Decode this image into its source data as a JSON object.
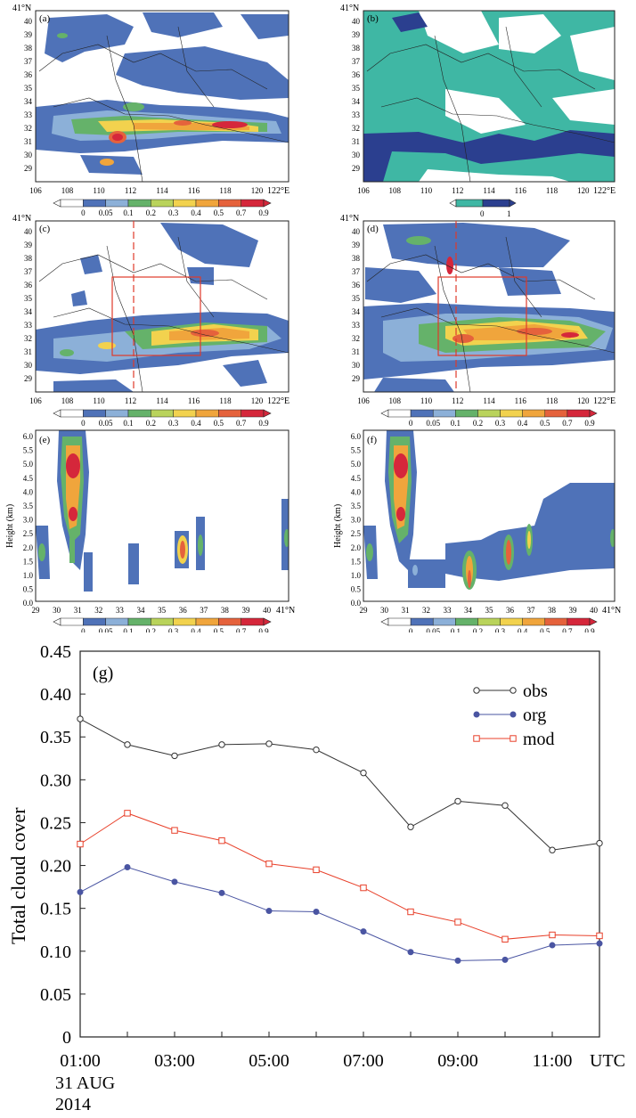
{
  "colors": {
    "c0": "#ffffff",
    "c005": "#4f72b8",
    "c01": "#8cb0d8",
    "c02": "#65b26a",
    "c03": "#b9d35b",
    "c04": "#f2d24e",
    "c05": "#f0a53c",
    "c07": "#e5623c",
    "c09": "#d5273b",
    "teal": "#3fb7a4",
    "navy": "#2b3f8f",
    "obs_line": "#333333",
    "org_line": "#4a55a2",
    "mod_line": "#e8402a"
  },
  "panels": {
    "a": {
      "label": "(a)",
      "lat_top": "41°N",
      "lon_end": "122°E"
    },
    "b": {
      "label": "(b)",
      "lat_top": "41°N",
      "lon_end": "122°E"
    },
    "c": {
      "label": "(c)",
      "lat_top": "41°N",
      "lon_end": "122°E"
    },
    "d": {
      "label": "(d)",
      "lat_top": "41°N",
      "lon_end": "122°E"
    },
    "e": {
      "label": "(e)",
      "lat_end": "41°N",
      "ylabel": "Height (km)"
    },
    "f": {
      "label": "(f)",
      "lat_end": "41°N",
      "ylabel": "Height (km)"
    }
  },
  "map_lat_ticks": [
    "40",
    "39",
    "38",
    "37",
    "36",
    "35",
    "34",
    "33",
    "32",
    "31",
    "30",
    "29"
  ],
  "map_lon_ticks": [
    "106",
    "108",
    "110",
    "112",
    "114",
    "116",
    "118",
    "120"
  ],
  "cross_lat_ticks": [
    "29",
    "30",
    "31",
    "32",
    "33",
    "34",
    "35",
    "36",
    "37",
    "38",
    "39",
    "40"
  ],
  "cross_height_ticks": [
    "6.0",
    "5.5",
    "5.0",
    "4.5",
    "4.0",
    "3.5",
    "3.0",
    "2.5",
    "2.0",
    "1.5",
    "1.0",
    "0.5",
    "0.0"
  ],
  "colorbar_labels": [
    "0",
    "0.05",
    "0.1",
    "0.2",
    "0.3",
    "0.4",
    "0.5",
    "0.7",
    "0.9"
  ],
  "colorbar_b_labels": [
    "0",
    "1"
  ],
  "chart_data": {
    "type": "line",
    "title": "(g)",
    "ylabel": "Total cloud cover",
    "xlabel": "",
    "x": [
      "01:00",
      "02:00",
      "03:00",
      "04:00",
      "05:00",
      "06:00",
      "07:00",
      "08:00",
      "09:00",
      "10:00",
      "11:00",
      "12:00"
    ],
    "x_tick_labels": [
      "01:00",
      "03:00",
      "05:00",
      "07:00",
      "09:00",
      "11:00"
    ],
    "x_unit_label": "UTC",
    "date_label_1": "31 AUG",
    "date_label_2": "2014",
    "ylim": [
      0,
      0.45
    ],
    "y_ticks": [
      "0.45",
      "0.40",
      "0.35",
      "0.30",
      "0.25",
      "0.20",
      "0.15",
      "0.10",
      "0.05",
      "0"
    ],
    "series": [
      {
        "name": "obs",
        "marker": "open-circle",
        "values": [
          0.371,
          0.341,
          0.328,
          0.341,
          0.342,
          0.335,
          0.308,
          0.245,
          0.275,
          0.27,
          0.218,
          0.226
        ]
      },
      {
        "name": "org",
        "marker": "filled-circle",
        "values": [
          0.169,
          0.198,
          0.181,
          0.168,
          0.147,
          0.146,
          0.123,
          0.099,
          0.089,
          0.09,
          0.107,
          0.109
        ]
      },
      {
        "name": "mod",
        "marker": "open-square",
        "values": [
          0.225,
          0.261,
          0.241,
          0.229,
          0.202,
          0.195,
          0.174,
          0.146,
          0.134,
          0.114,
          0.119,
          0.118
        ]
      }
    ],
    "legend": "top-right"
  }
}
